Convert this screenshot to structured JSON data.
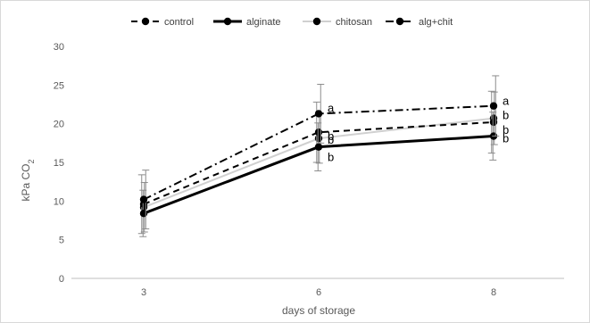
{
  "chart_data": {
    "type": "line",
    "title": "",
    "xlabel": "days of storage",
    "ylabel": "kPa CO",
    "ylabel_subscript": "2",
    "categories": [
      "3",
      "6",
      "8"
    ],
    "ylim": [
      0,
      30
    ],
    "yticks": [
      0,
      5,
      10,
      15,
      20,
      25,
      30
    ],
    "grid": false,
    "legend_position": "top",
    "series": [
      {
        "name": "control",
        "values": [
          9.6,
          18.9,
          20.2
        ],
        "error": [
          3.8,
          3.9,
          4.0
        ],
        "labels": [
          "",
          "b",
          "b"
        ],
        "color": "#000000",
        "style": "dashed"
      },
      {
        "name": "alginate",
        "values": [
          8.4,
          17.0,
          18.4
        ],
        "error": [
          3.0,
          3.1,
          3.1
        ],
        "labels": [
          "",
          "b",
          "b"
        ],
        "color": "#000000",
        "style": "solid-thick"
      },
      {
        "name": "chitosan",
        "values": [
          9.2,
          18.1,
          20.7
        ],
        "error": [
          3.2,
          3.2,
          3.4
        ],
        "labels": [
          "",
          "b",
          "b"
        ],
        "color": "#d0d0d0",
        "style": "solid-light"
      },
      {
        "name": "alg+chit",
        "values": [
          10.2,
          21.3,
          22.3
        ],
        "error": [
          3.8,
          3.8,
          3.9
        ],
        "labels": [
          "",
          "a",
          "a"
        ],
        "color": "#000000",
        "style": "dash-dot"
      }
    ]
  }
}
